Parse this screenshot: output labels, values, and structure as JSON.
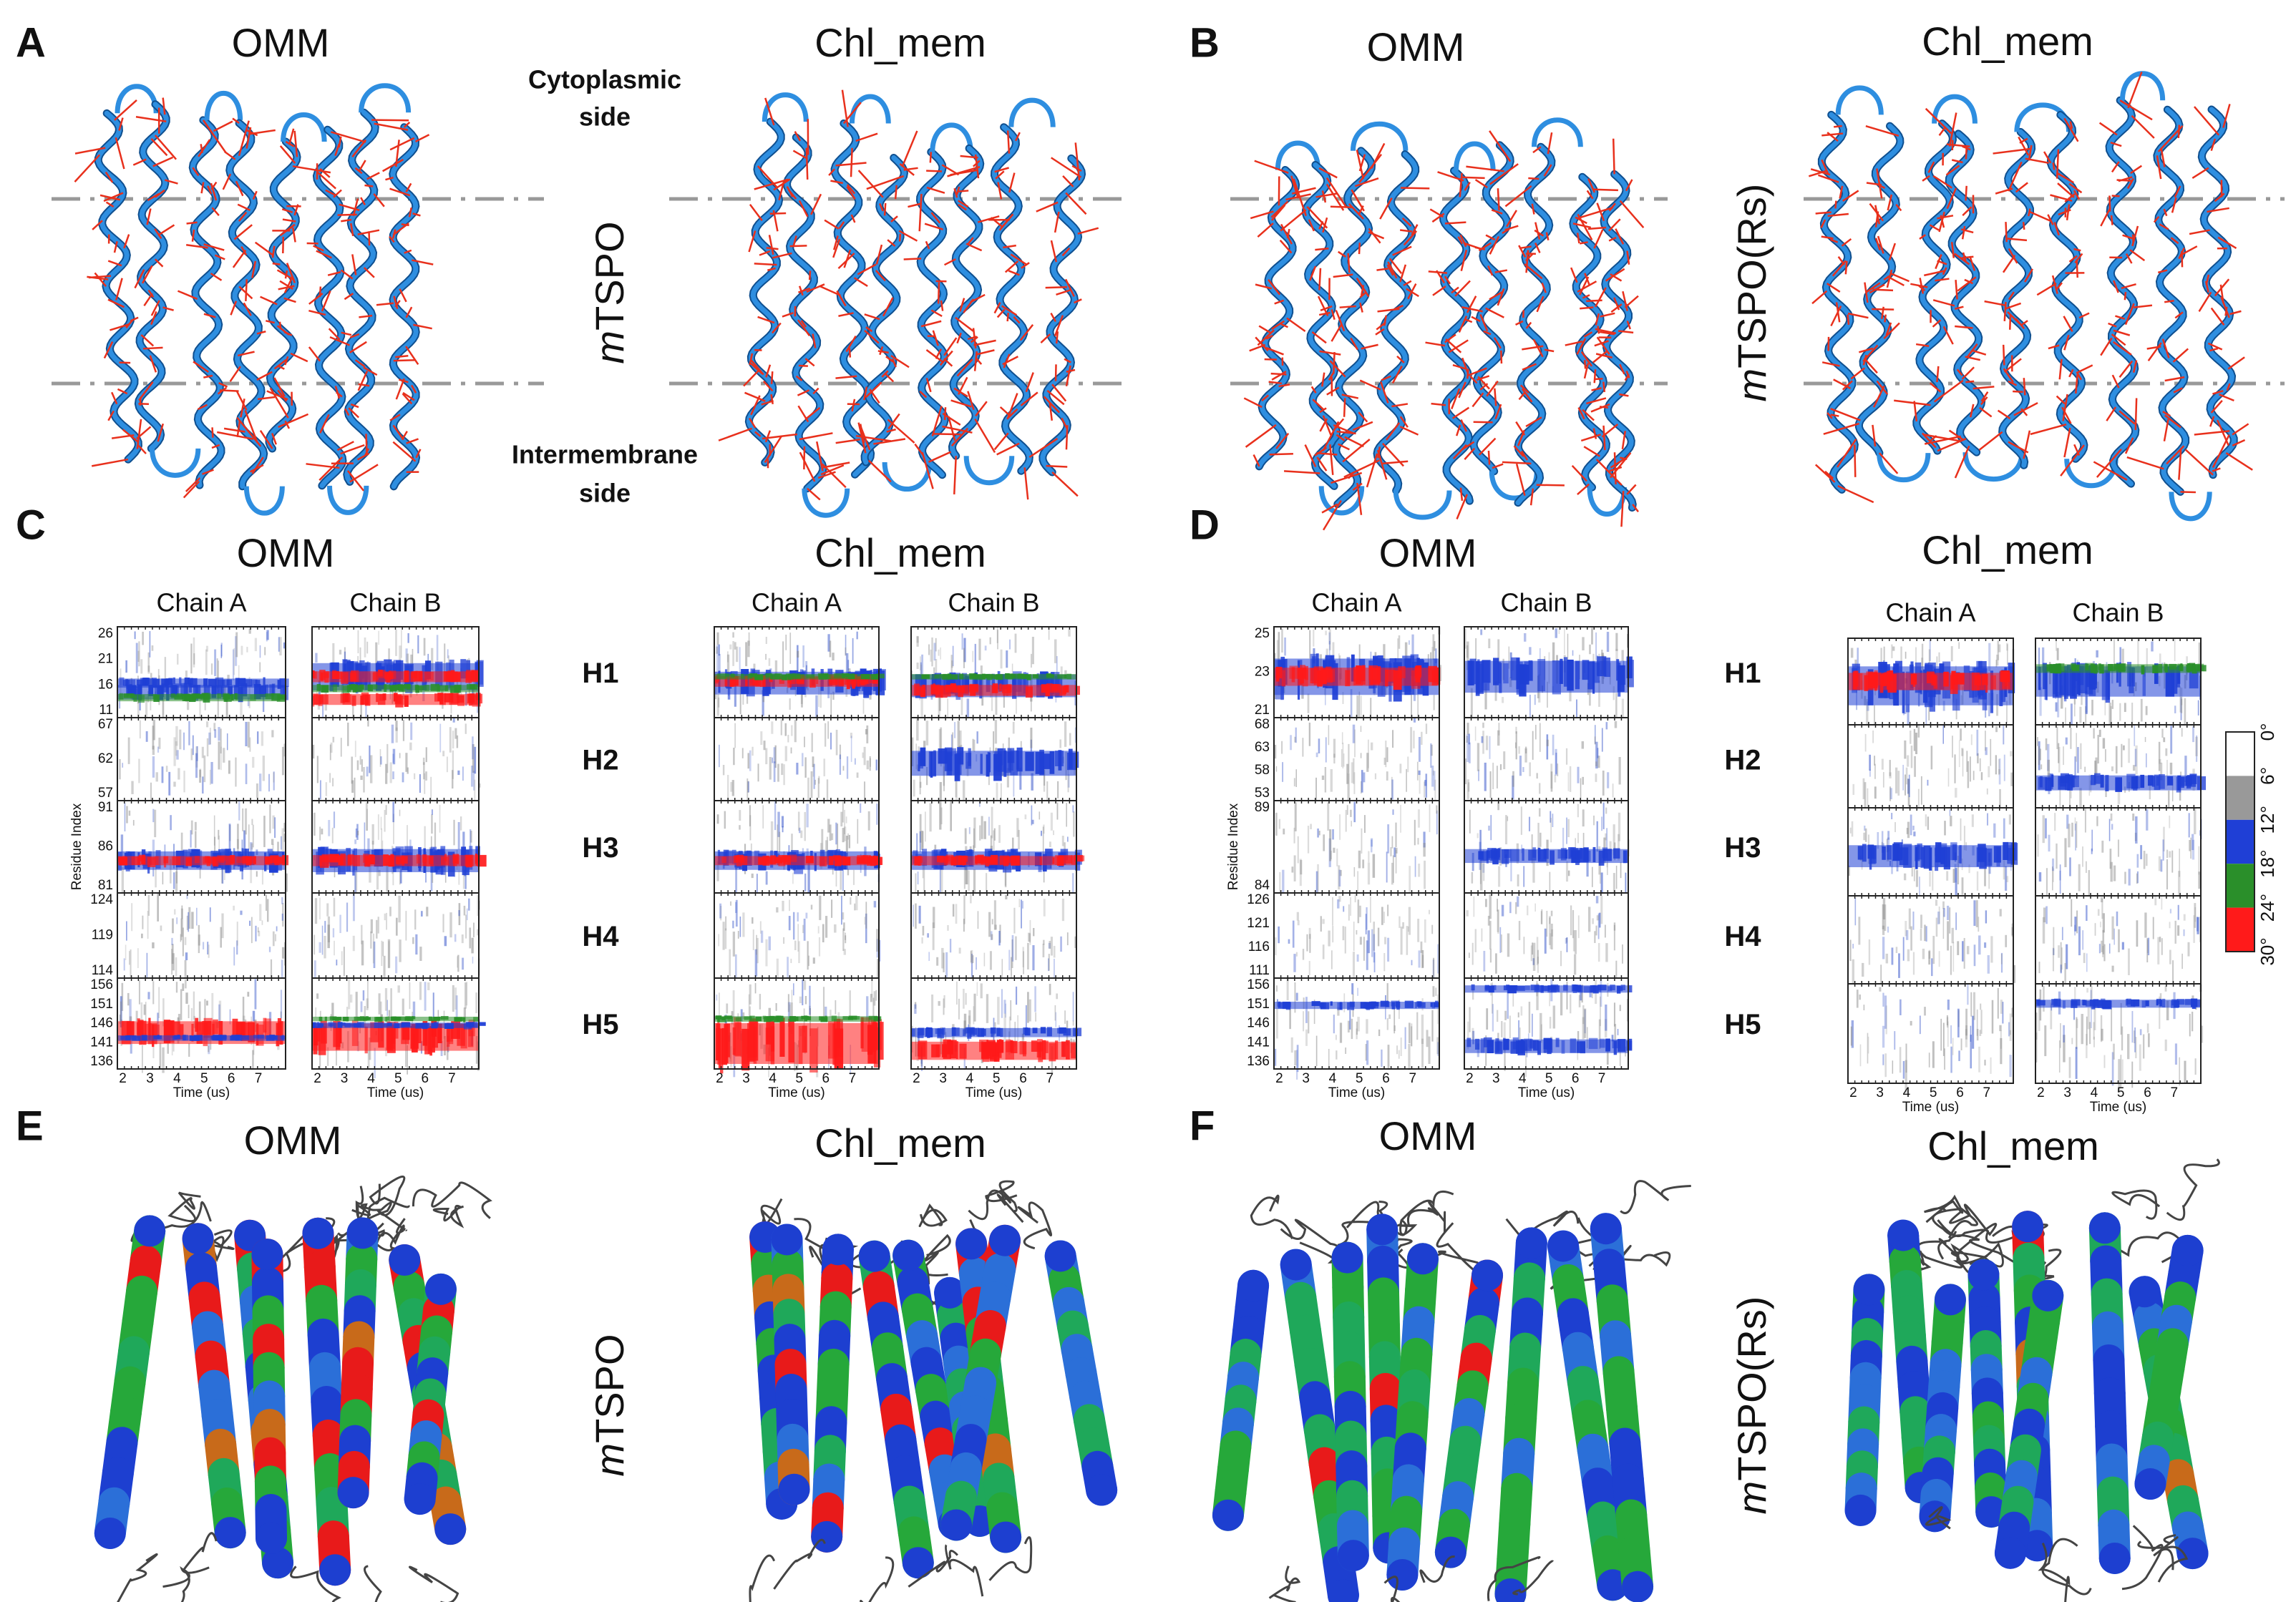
{
  "panels": {
    "A": {
      "letter": "A",
      "titles": [
        "OMM",
        "Chl_mem"
      ],
      "side_label": [
        "m",
        "TSPO"
      ],
      "top_label": [
        "Cytoplasmic",
        "side"
      ],
      "bottom_label": [
        "Intermembrane",
        "side"
      ]
    },
    "B": {
      "letter": "B",
      "titles": [
        "OMM",
        "Chl_mem"
      ],
      "side_label": [
        "m",
        "TSPO(Rs)"
      ]
    },
    "C": {
      "letter": "C",
      "helices": [
        "H1",
        "H2",
        "H3",
        "H4",
        "H5"
      ],
      "groups": [
        {
          "title": "OMM",
          "chains": [
            "Chain A",
            "Chain B"
          ],
          "ylabel": "Residue Index",
          "yticks": [
            [
              26,
              21,
              16,
              11
            ],
            [
              67,
              62,
              57
            ],
            [
              91,
              86,
              81
            ],
            [
              124,
              119,
              114
            ],
            [
              156,
              151,
              146,
              141,
              136
            ]
          ]
        },
        {
          "title": "Chl_mem",
          "chains": [
            "Chain A",
            "Chain B"
          ]
        }
      ],
      "xticks": [
        2,
        3,
        4,
        5,
        6,
        7
      ],
      "xlabel": "Time (us)"
    },
    "D": {
      "letter": "D",
      "helices": [
        "H1",
        "H2",
        "H3",
        "H4",
        "H5"
      ],
      "groups": [
        {
          "title": "OMM",
          "chains": [
            "Chain A",
            "Chain B"
          ],
          "ylabel": "Residue Index",
          "yticks": [
            [
              25,
              23,
              21
            ],
            [
              68,
              63,
              58,
              53
            ],
            [
              89,
              84
            ],
            [
              126,
              121,
              116,
              111
            ],
            [
              156,
              151,
              146,
              141,
              136
            ]
          ]
        },
        {
          "title": "Chl_mem",
          "chains": [
            "Chain A",
            "Chain B"
          ]
        }
      ],
      "xticks": [
        2,
        3,
        4,
        5,
        6,
        7
      ],
      "xlabel": "Time (us)"
    },
    "E": {
      "letter": "E",
      "titles": [
        "OMM",
        "Chl_mem"
      ],
      "side_label": [
        "m",
        "TSPO"
      ]
    },
    "F": {
      "letter": "F",
      "titles": [
        "OMM",
        "Chl_mem"
      ],
      "side_label": [
        "m",
        "TSPO(Rs)"
      ]
    }
  },
  "colorbar": {
    "labels": [
      "0°",
      "6°",
      "12°",
      "18°",
      "24°",
      "30°"
    ]
  }
}
